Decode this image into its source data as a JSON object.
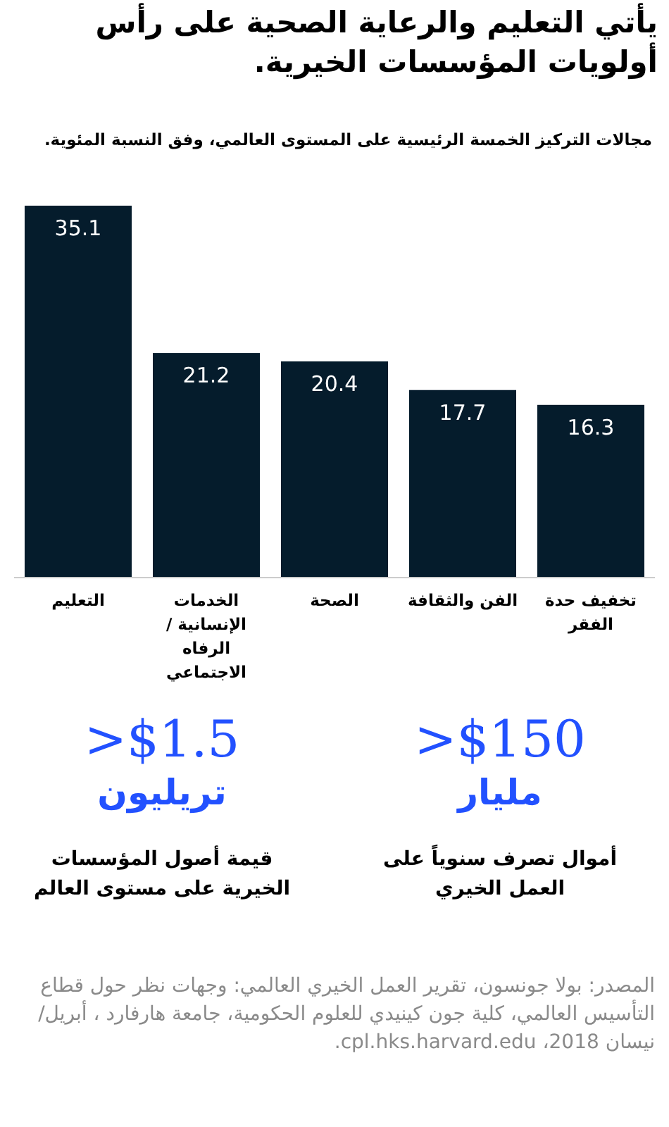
{
  "chart_data": [
    {
      "type": "bar",
      "title": "يأتي التعليم والرعاية الصحية على رأس أولويات المؤسسات الخيرية.",
      "subtitle": "مجالات التركيز الخمسة الرئيسية على المستوى العالمي، وفق النسبة المئوية.",
      "categories": [
        "التعليم",
        "الخدمات الإنسانية /الرفاه الاجتماعي",
        "الصحة",
        "الفن والثقافة",
        "تخفيف حدة الفقر"
      ],
      "values": [
        35.1,
        21.2,
        20.4,
        17.7,
        16.3
      ],
      "color": "#051c2c",
      "data_labels": true,
      "annotations": [
        "المصدر: بولا جونسون، تقرير العمل الخيري العالمي: وجهات نظر حول قطاع التأسيس العالمي، كلية جون كينيدي للعلوم الحكومية، جامعة هارفارد ، أبريل/نيسان 2018، cpl.hks.harvard.edu."
      ]
    },
    {
      "type": "other",
      "annotations": [
        ">$150",
        "مليار",
        "أموال تصرف سنوياً على العمل الخيري",
        ">$1.5",
        "تريليون",
        "قيمة أصول المؤسسات الخيرية على مستوى العالم"
      ]
    }
  ]
}
